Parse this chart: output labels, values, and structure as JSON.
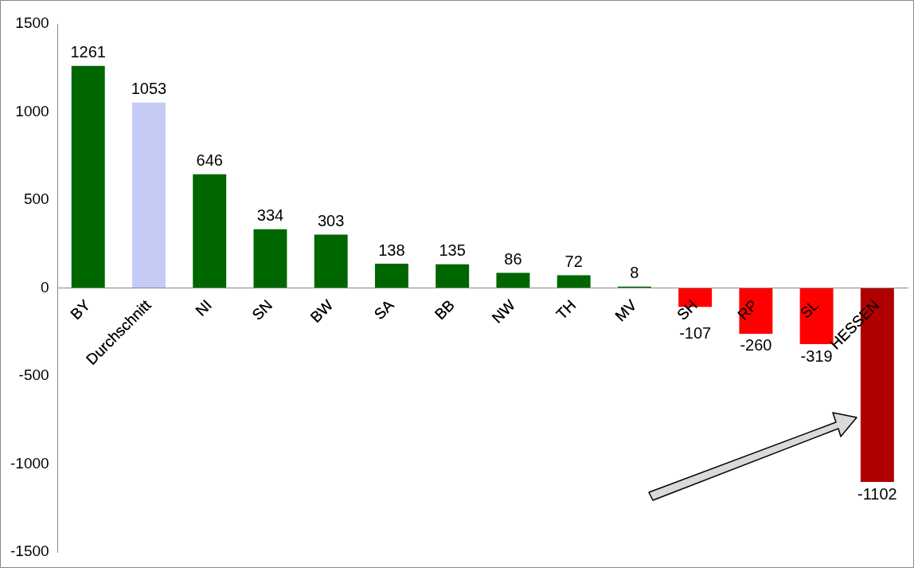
{
  "chart_data": {
    "type": "bar",
    "categories": [
      "BY",
      "Durchschnitt",
      "NI",
      "SN",
      "BW",
      "SA",
      "BB",
      "NW",
      "TH",
      "MV",
      "SH",
      "RP",
      "SL",
      "HESSEN"
    ],
    "values": [
      1261,
      1053,
      646,
      334,
      303,
      138,
      135,
      86,
      72,
      8,
      -107,
      -260,
      -319,
      -1102
    ],
    "colors": [
      "#006600",
      "#c4ccf6",
      "#006600",
      "#006600",
      "#006600",
      "#006600",
      "#006600",
      "#006600",
      "#006600",
      "#006600",
      "#ff0000",
      "#ff0000",
      "#ff0000",
      "#b00000"
    ],
    "ylim": [
      -1500,
      1500
    ],
    "yticks": [
      -1500,
      -1000,
      -500,
      0,
      500,
      1000,
      1500
    ],
    "grid": false,
    "legend": false,
    "data_labels": true
  }
}
